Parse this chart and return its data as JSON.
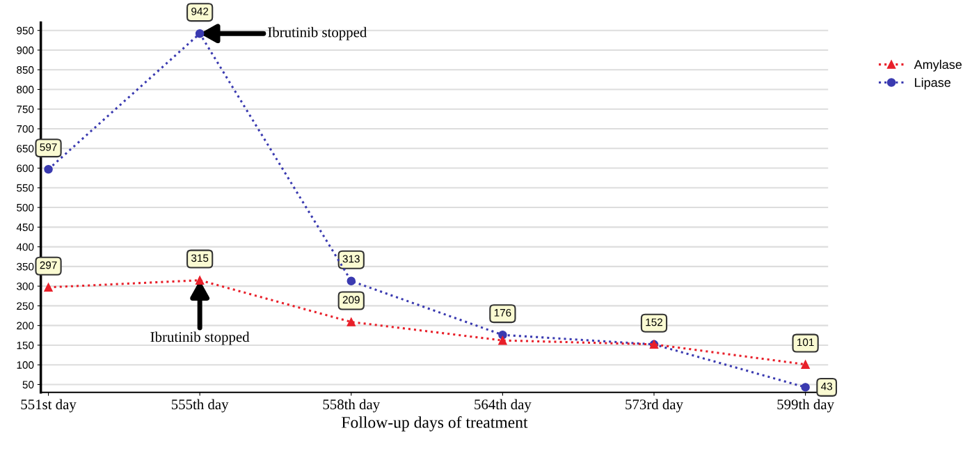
{
  "chart_data": {
    "type": "line",
    "xlabel": "Follow-up days of treatment",
    "categories": [
      "551st day",
      "555th day",
      "558th day",
      "564th day",
      "573rd day",
      "599th day"
    ],
    "series": [
      {
        "name": "Amylase",
        "color": "#e8202a",
        "marker": "triangle",
        "values": [
          297,
          315,
          209,
          162,
          152,
          101
        ],
        "value_labels": [
          "297",
          "315",
          "209",
          null,
          null,
          "101"
        ]
      },
      {
        "name": "Lipase",
        "color": "#3a3ab0",
        "marker": "circle",
        "values": [
          597,
          942,
          313,
          176,
          152,
          43
        ],
        "value_labels": [
          "597",
          "942",
          "313",
          "176",
          "152",
          "43"
        ]
      }
    ],
    "ylim": [
      30,
      970
    ],
    "yticks": [
      50,
      100,
      150,
      200,
      250,
      300,
      350,
      400,
      450,
      500,
      550,
      600,
      650,
      700,
      750,
      800,
      850,
      900,
      950
    ],
    "grid": "y",
    "legend": "top right",
    "line_style": "dotted",
    "annotations": [
      {
        "text": "Ibrutinib stopped",
        "x": "555th day",
        "y": 942
      },
      {
        "text": "Ibrutinib stopped",
        "x": "555th day",
        "y": 315
      }
    ]
  }
}
